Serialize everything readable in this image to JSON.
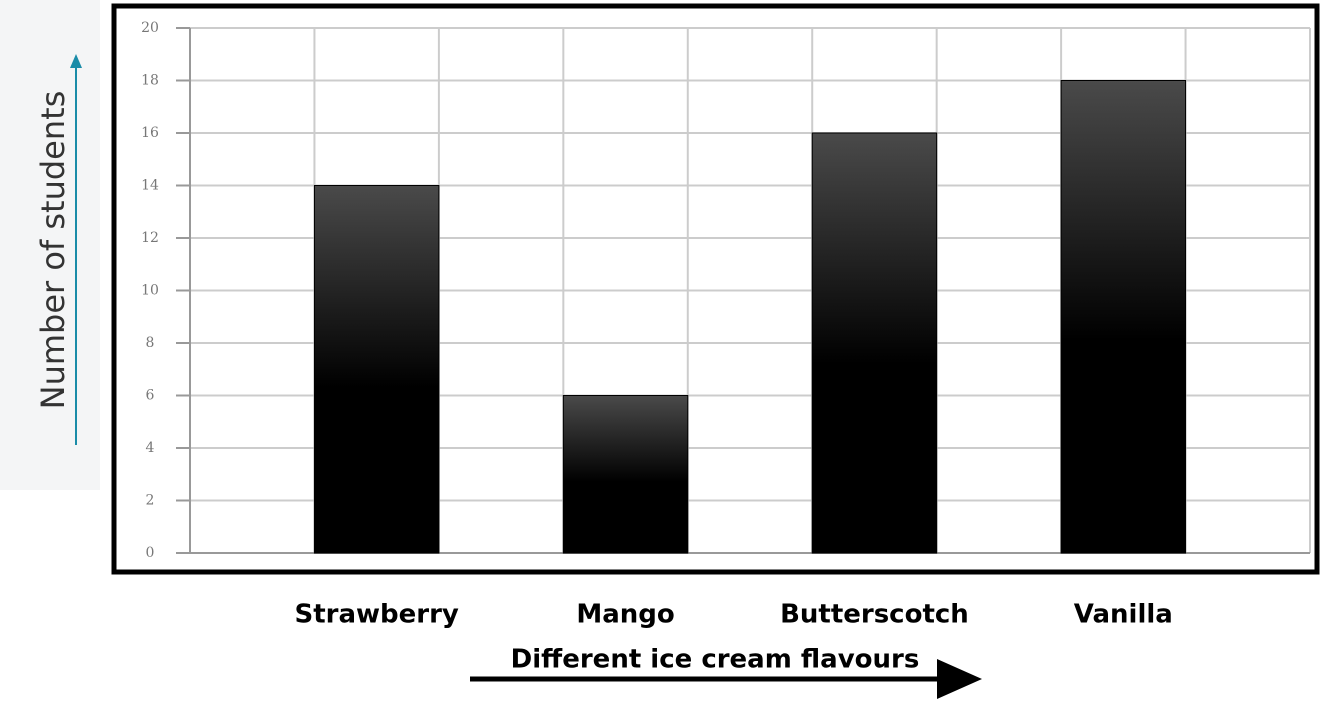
{
  "chart_data": {
    "type": "bar",
    "x_label": "Different ice cream flavours",
    "y_label": "Number of students",
    "categories": [
      "Strawberry",
      "Mango",
      "Butterscotch",
      "Vanilla"
    ],
    "values": [
      14,
      6,
      16,
      18
    ],
    "color": "#000000",
    "ylim": [
      0,
      20
    ],
    "yticks": [
      0,
      2,
      4,
      6,
      8,
      10,
      12,
      14,
      16,
      18,
      20
    ],
    "grid": true
  }
}
